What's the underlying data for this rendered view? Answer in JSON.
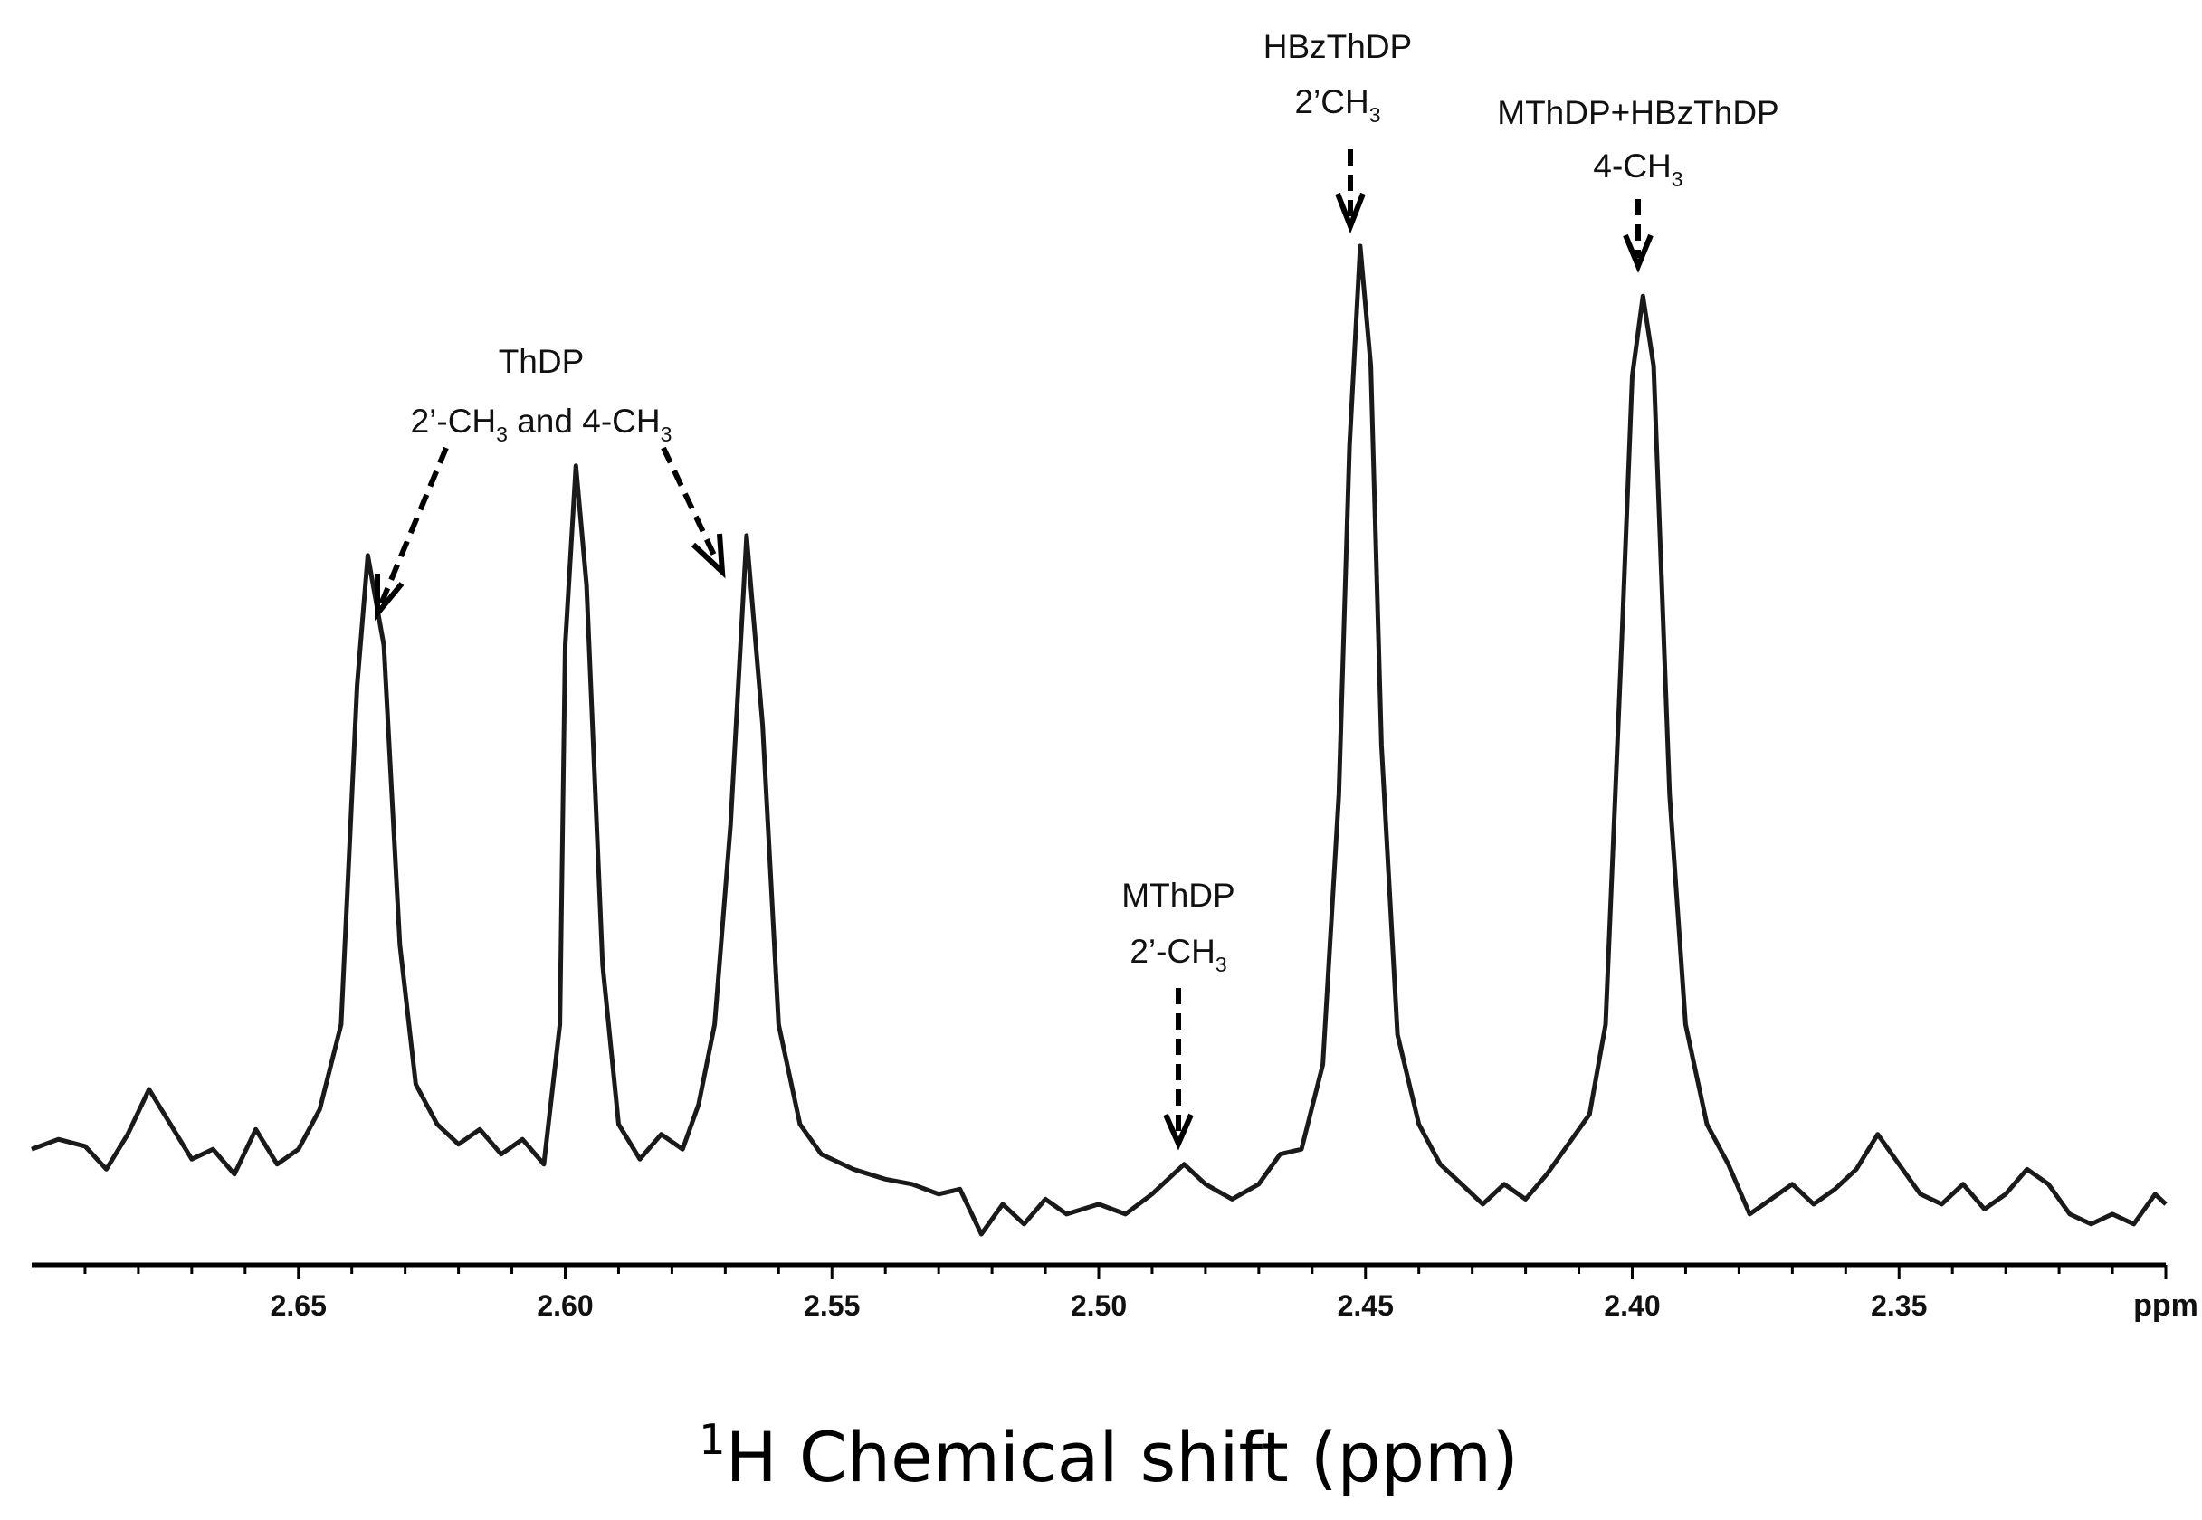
{
  "chart_data": {
    "type": "line",
    "title": "",
    "xlabel_sup": "1",
    "xlabel": "H Chemical shift (ppm)",
    "x_unit_label": "ppm",
    "xlim": [
      2.7,
      2.3
    ],
    "x_reversed": true,
    "ylim": [
      0,
      1
    ],
    "grid": false,
    "xticks": [
      "2.65",
      "2.60",
      "2.55",
      "2.50",
      "2.45",
      "2.40",
      "2.35"
    ],
    "peaks": [
      {
        "x": 2.637,
        "height": 0.69
      },
      {
        "x": 2.598,
        "height": 0.78
      },
      {
        "x": 2.566,
        "height": 0.71
      },
      {
        "x": 2.484,
        "height": 0.08
      },
      {
        "x": 2.451,
        "height": 1.0
      },
      {
        "x": 2.398,
        "height": 0.95
      }
    ],
    "series": [
      {
        "values": [
          [
            2.7,
            0.095
          ],
          [
            2.695,
            0.105
          ],
          [
            2.69,
            0.098
          ],
          [
            2.686,
            0.075
          ],
          [
            2.682,
            0.11
          ],
          [
            2.678,
            0.155
          ],
          [
            2.674,
            0.12
          ],
          [
            2.67,
            0.085
          ],
          [
            2.666,
            0.095
          ],
          [
            2.662,
            0.07
          ],
          [
            2.658,
            0.115
          ],
          [
            2.654,
            0.08
          ],
          [
            2.65,
            0.095
          ],
          [
            2.646,
            0.135
          ],
          [
            2.642,
            0.22
          ],
          [
            2.639,
            0.56
          ],
          [
            2.637,
            0.69
          ],
          [
            2.634,
            0.6
          ],
          [
            2.631,
            0.3
          ],
          [
            2.628,
            0.16
          ],
          [
            2.624,
            0.12
          ],
          [
            2.62,
            0.1
          ],
          [
            2.616,
            0.115
          ],
          [
            2.612,
            0.09
          ],
          [
            2.608,
            0.105
          ],
          [
            2.604,
            0.08
          ],
          [
            2.601,
            0.22
          ],
          [
            2.6,
            0.6
          ],
          [
            2.598,
            0.78
          ],
          [
            2.596,
            0.66
          ],
          [
            2.593,
            0.28
          ],
          [
            2.59,
            0.12
          ],
          [
            2.586,
            0.085
          ],
          [
            2.582,
            0.11
          ],
          [
            2.578,
            0.095
          ],
          [
            2.575,
            0.14
          ],
          [
            2.572,
            0.22
          ],
          [
            2.569,
            0.42
          ],
          [
            2.566,
            0.71
          ],
          [
            2.563,
            0.52
          ],
          [
            2.56,
            0.22
          ],
          [
            2.556,
            0.12
          ],
          [
            2.552,
            0.09
          ],
          [
            2.546,
            0.075
          ],
          [
            2.54,
            0.065
          ],
          [
            2.535,
            0.06
          ],
          [
            2.53,
            0.05
          ],
          [
            2.526,
            0.055
          ],
          [
            2.522,
            0.01
          ],
          [
            2.518,
            0.04
          ],
          [
            2.514,
            0.02
          ],
          [
            2.51,
            0.045
          ],
          [
            2.506,
            0.03
          ],
          [
            2.5,
            0.04
          ],
          [
            2.495,
            0.03
          ],
          [
            2.49,
            0.05
          ],
          [
            2.484,
            0.08
          ],
          [
            2.48,
            0.06
          ],
          [
            2.475,
            0.045
          ],
          [
            2.47,
            0.06
          ],
          [
            2.466,
            0.09
          ],
          [
            2.462,
            0.095
          ],
          [
            2.458,
            0.18
          ],
          [
            2.455,
            0.45
          ],
          [
            2.453,
            0.8
          ],
          [
            2.451,
            1.0
          ],
          [
            2.449,
            0.88
          ],
          [
            2.447,
            0.5
          ],
          [
            2.444,
            0.21
          ],
          [
            2.44,
            0.12
          ],
          [
            2.436,
            0.08
          ],
          [
            2.432,
            0.06
          ],
          [
            2.428,
            0.04
          ],
          [
            2.424,
            0.06
          ],
          [
            2.42,
            0.045
          ],
          [
            2.416,
            0.07
          ],
          [
            2.412,
            0.1
          ],
          [
            2.408,
            0.13
          ],
          [
            2.405,
            0.22
          ],
          [
            2.402,
            0.6
          ],
          [
            2.4,
            0.87
          ],
          [
            2.398,
            0.95
          ],
          [
            2.396,
            0.88
          ],
          [
            2.393,
            0.45
          ],
          [
            2.39,
            0.22
          ],
          [
            2.386,
            0.12
          ],
          [
            2.382,
            0.08
          ],
          [
            2.378,
            0.03
          ],
          [
            2.374,
            0.045
          ],
          [
            2.37,
            0.06
          ],
          [
            2.366,
            0.04
          ],
          [
            2.362,
            0.055
          ],
          [
            2.358,
            0.075
          ],
          [
            2.354,
            0.11
          ],
          [
            2.35,
            0.08
          ],
          [
            2.346,
            0.05
          ],
          [
            2.342,
            0.04
          ],
          [
            2.338,
            0.06
          ],
          [
            2.334,
            0.035
          ],
          [
            2.33,
            0.05
          ],
          [
            2.326,
            0.075
          ],
          [
            2.322,
            0.06
          ],
          [
            2.318,
            0.03
          ],
          [
            2.314,
            0.02
          ],
          [
            2.31,
            0.03
          ],
          [
            2.306,
            0.02
          ],
          [
            2.302,
            0.05
          ],
          [
            2.3,
            0.04
          ]
        ]
      }
    ],
    "annotations": [
      {
        "id": "thdp",
        "line1": "ThDP",
        "line2_a": "2’-CH",
        "line2_sub_a": "3",
        "line2_b": " and 4-CH",
        "line2_sub_b": "3",
        "targets": [
          2.637,
          2.566
        ]
      },
      {
        "id": "mthdp",
        "line1": "MThDP",
        "line2_a": "2’-CH",
        "line2_sub_a": "3",
        "targets": [
          2.484
        ]
      },
      {
        "id": "hbzthdp",
        "line1": "HBzThDP",
        "line2_a": "2’CH",
        "line2_sub_a": "3",
        "targets": [
          2.451
        ]
      },
      {
        "id": "mthdp-hbzthdp",
        "line1": "MThDP+HBzThDP",
        "line2_a": "4-CH",
        "line2_sub_a": "3",
        "targets": [
          2.398
        ]
      }
    ]
  }
}
